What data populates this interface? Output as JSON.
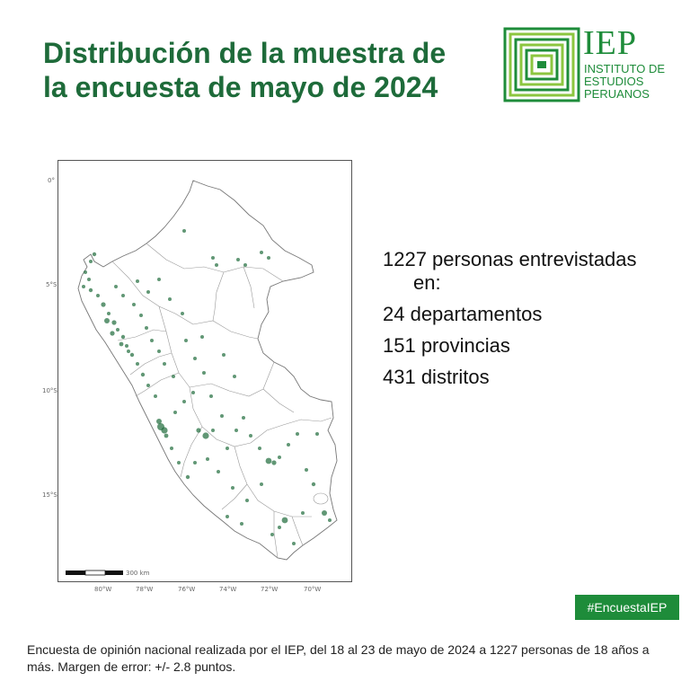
{
  "header": {
    "title_line1": "Distribución de la muestra de",
    "title_line2": "la encuesta de mayo de 2024"
  },
  "logo": {
    "name": "IEP",
    "subtitle_line1": "INSTITUTO DE",
    "subtitle_line2": "ESTUDIOS",
    "subtitle_line3": "PERUANOS",
    "color": "#1e8c3a"
  },
  "map": {
    "lat_labels": [
      "0°",
      "5°S",
      "10°S",
      "15°S"
    ],
    "lon_labels": [
      "80°W",
      "78°W",
      "76°W",
      "74°W",
      "72°W",
      "70°W"
    ],
    "scale_label": "300 km",
    "point_color": "#1e6b3a"
  },
  "stats": {
    "line1a": "1227 personas entrevistadas",
    "line1b": "en:",
    "departamentos": "24 departamentos",
    "provincias": "151 provincias",
    "distritos": "431 distritos"
  },
  "hashtag": "#EncuestaIEP",
  "footer": "Encuesta de opinión nacional realizada por el IEP, del 18 al 23 de mayo de 2024 a 1227 personas de 18 años a más. Margen de error: +/- 2.8 puntos."
}
